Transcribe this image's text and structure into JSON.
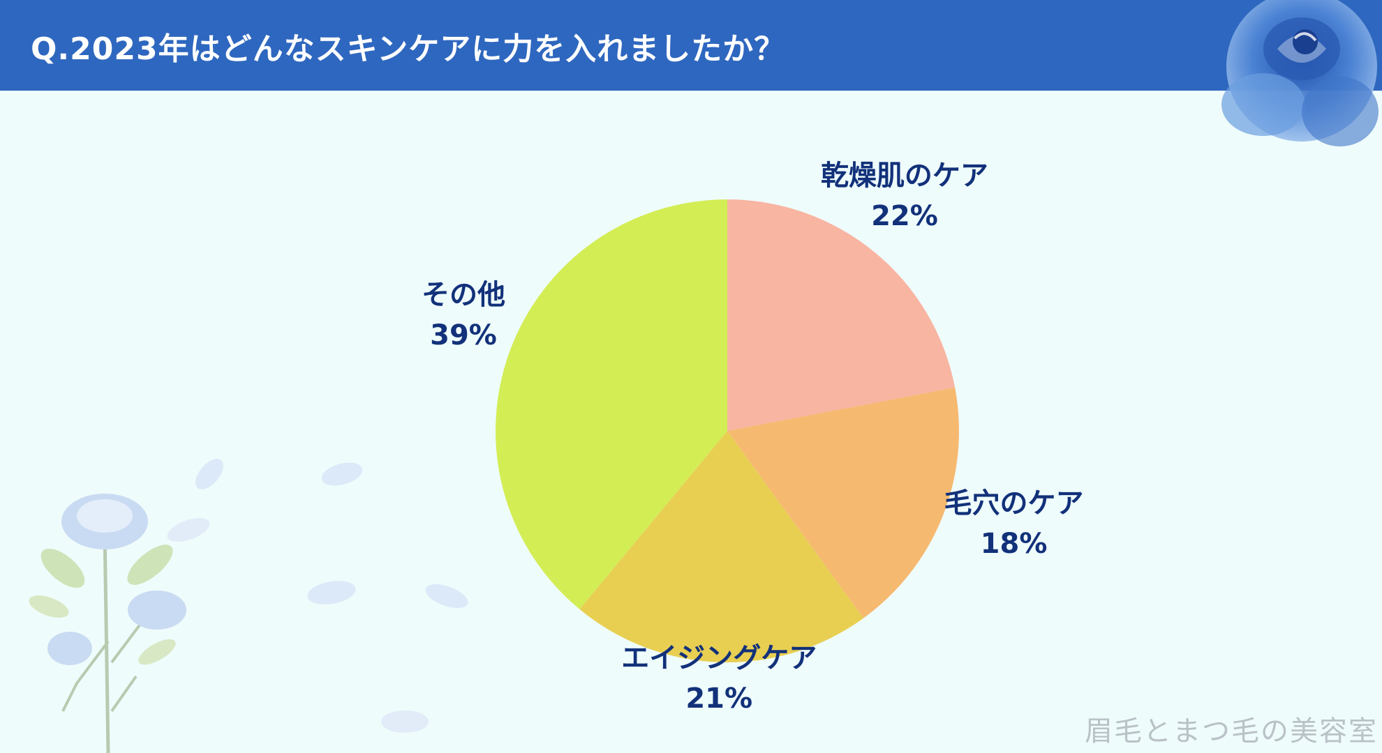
{
  "header": {
    "title": "Q.2023年はどんなスキンケアに力を入れましたか？",
    "color": "#2e67bf"
  },
  "chart_data": {
    "type": "pie",
    "title": "Q.2023年はどんなスキンケアに力を入れましたか？",
    "slices": [
      {
        "label": "乾燥肌のケア",
        "value": 22,
        "value_label": "22%",
        "color": "#f8b5a2"
      },
      {
        "label": "毛穴のケア",
        "value": 18,
        "value_label": "18%",
        "color": "#f6b970"
      },
      {
        "label": "エイジングケア",
        "value": 21,
        "value_label": "21%",
        "color": "#e8cf52"
      },
      {
        "label": "その他",
        "value": 39,
        "value_label": "39%",
        "color": "#d3ed55"
      }
    ],
    "start_angle": "12 o'clock",
    "direction": "clockwise",
    "legend": "none"
  },
  "watermark": "眉毛とまつ毛の美容室",
  "decorations": {
    "top_right": "blue-rose",
    "bottom_left": "blue-rose-bouquet",
    "petals": "blue-petals"
  }
}
